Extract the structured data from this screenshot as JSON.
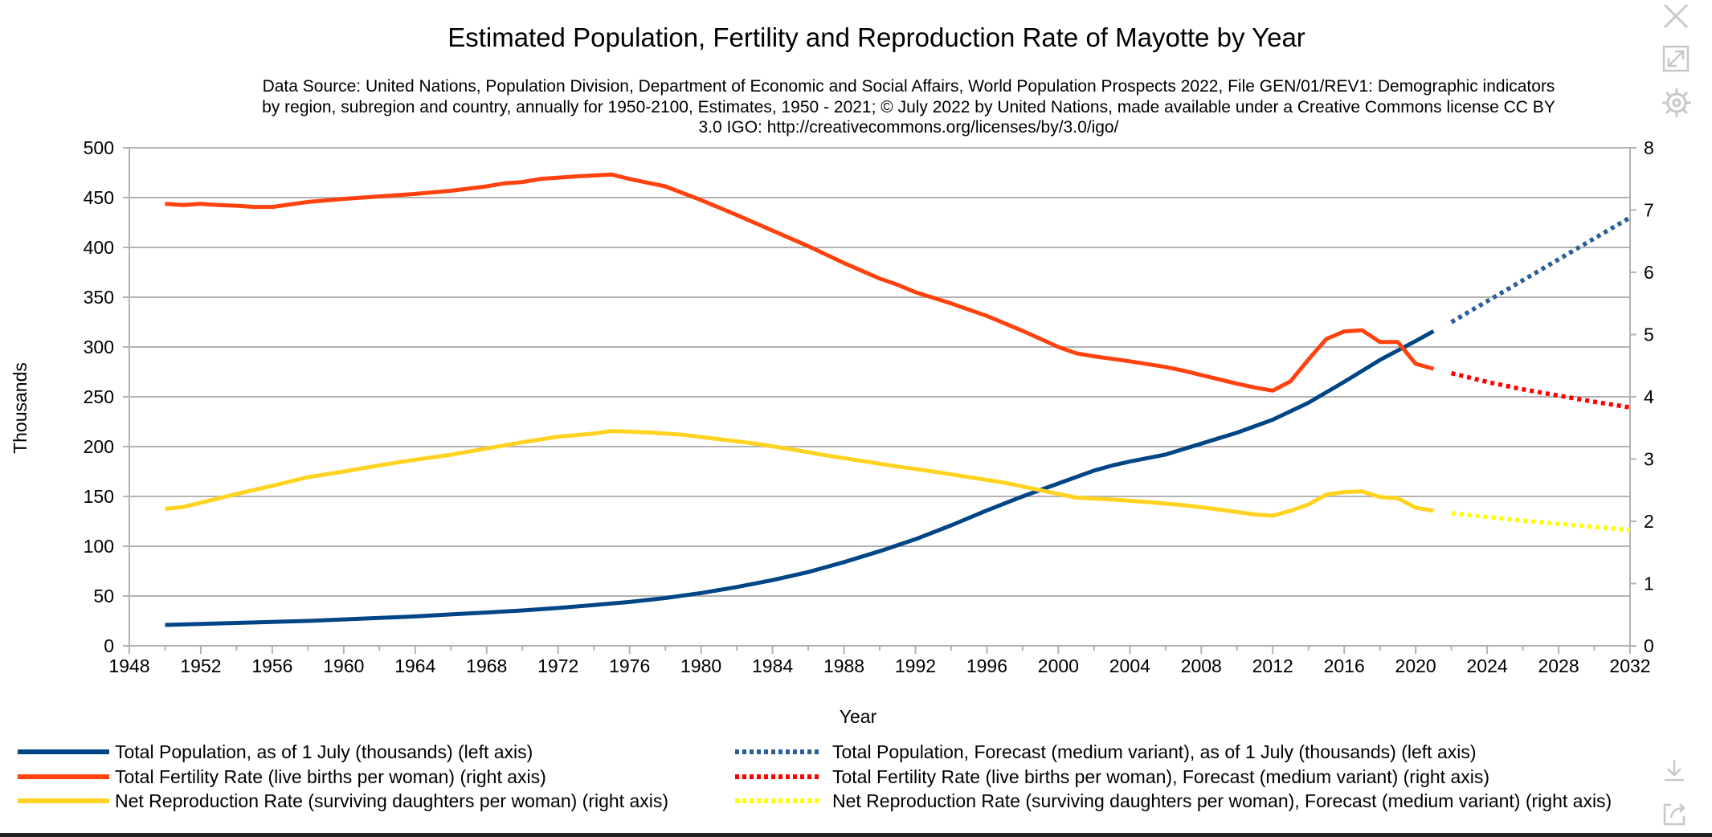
{
  "chart_data": {
    "type": "line",
    "title": "Estimated Population, Fertility and Reproduction Rate of Mayotte by Year",
    "subtitle_lines": [
      "Data Source: United Nations, Population Division, Department of Economic and Social Affairs, World Population Prospects 2022, File GEN/01/REV1: Demographic indicators",
      "by region, subregion and country, annually for 1950-2100, Estimates, 1950 - 2021; © July 2022 by United Nations, made available under a Creative Commons license CC BY",
      "3.0 IGO: http://creativecommons.org/licenses/by/3.0/igo/"
    ],
    "xlabel": "Year",
    "ylabel_left": "Thousands",
    "xlim": [
      1948,
      2032
    ],
    "ylim_left": [
      0,
      500
    ],
    "ylim_right": [
      0,
      8
    ],
    "x_ticks": [
      1948,
      1952,
      1956,
      1960,
      1964,
      1968,
      1972,
      1976,
      1980,
      1984,
      1988,
      1992,
      1996,
      2000,
      2004,
      2008,
      2012,
      2016,
      2020,
      2024,
      2028,
      2032
    ],
    "y_left_ticks": [
      0,
      50,
      100,
      150,
      200,
      250,
      300,
      350,
      400,
      450,
      500
    ],
    "y_right_ticks": [
      0,
      1,
      2,
      3,
      4,
      5,
      6,
      7,
      8
    ],
    "grid": true,
    "legend_position": "bottom",
    "series": [
      {
        "name": "Total Population, as of 1 July (thousands) (left axis)",
        "axis": "left",
        "style": "solid",
        "color": "#004586",
        "x": [
          1950,
          1952,
          1954,
          1956,
          1958,
          1960,
          1962,
          1964,
          1966,
          1968,
          1970,
          1972,
          1974,
          1976,
          1978,
          1980,
          1982,
          1984,
          1986,
          1988,
          1990,
          1992,
          1994,
          1996,
          1998,
          2000,
          2002,
          2003,
          2004,
          2006,
          2008,
          2010,
          2012,
          2014,
          2016,
          2018,
          2020,
          2021
        ],
        "y": [
          21,
          22,
          23,
          24,
          25,
          26.5,
          28,
          29.5,
          31.5,
          33.5,
          35.5,
          38,
          41,
          44,
          48,
          53,
          59,
          66,
          74,
          84,
          95,
          107,
          121,
          136,
          150,
          163,
          176,
          181,
          185,
          192,
          203,
          214,
          227,
          244,
          265,
          287,
          306,
          316
        ]
      },
      {
        "name": "Total Population, Forecast (medium variant), as of 1 July (thousands) (left axis)",
        "axis": "left",
        "style": "dotted",
        "color": "#2a6099",
        "x": [
          2022,
          2024,
          2026,
          2028,
          2030,
          2032
        ],
        "y": [
          325,
          346,
          367,
          388,
          409,
          430
        ]
      },
      {
        "name": "Total Fertility Rate (live births per woman) (right axis)",
        "axis": "right",
        "style": "solid",
        "color": "#ff420e",
        "x": [
          1950,
          1951,
          1952,
          1953,
          1954,
          1955,
          1956,
          1957,
          1958,
          1960,
          1962,
          1964,
          1966,
          1968,
          1969,
          1970,
          1971,
          1973,
          1975,
          1976,
          1978,
          1980,
          1982,
          1984,
          1986,
          1988,
          1990,
          1991,
          1992,
          1994,
          1996,
          1998,
          1999,
          2000,
          2001,
          2002,
          2004,
          2006,
          2007,
          2008,
          2010,
          2011,
          2012,
          2013,
          2014,
          2015,
          2016,
          2017,
          2018,
          2019,
          2020,
          2021
        ],
        "y": [
          7.1,
          7.08,
          7.1,
          7.08,
          7.07,
          7.05,
          7.05,
          7.09,
          7.13,
          7.18,
          7.22,
          7.26,
          7.31,
          7.38,
          7.43,
          7.45,
          7.5,
          7.54,
          7.57,
          7.5,
          7.38,
          7.16,
          6.92,
          6.67,
          6.42,
          6.15,
          5.9,
          5.8,
          5.68,
          5.5,
          5.3,
          5.06,
          4.93,
          4.8,
          4.7,
          4.65,
          4.57,
          4.48,
          4.42,
          4.35,
          4.21,
          4.15,
          4.1,
          4.25,
          4.6,
          4.93,
          5.05,
          5.07,
          4.88,
          4.88,
          4.53,
          4.45
        ]
      },
      {
        "name": "Total Fertility Rate (live births per woman), Forecast (medium variant) (right axis)",
        "axis": "right",
        "style": "dotted",
        "color": "#ff0000",
        "x": [
          2022,
          2024,
          2026,
          2028,
          2030,
          2032
        ],
        "y": [
          4.38,
          4.24,
          4.12,
          4.02,
          3.92,
          3.83
        ]
      },
      {
        "name": "Net Reproduction Rate (surviving daughters per woman) (right axis)",
        "axis": "right",
        "style": "solid",
        "color": "#ffd320",
        "x": [
          1950,
          1951,
          1952,
          1954,
          1956,
          1958,
          1960,
          1962,
          1964,
          1966,
          1968,
          1970,
          1972,
          1974,
          1975,
          1977,
          1979,
          1981,
          1983,
          1985,
          1987,
          1989,
          1991,
          1993,
          1995,
          1997,
          1999,
          2000,
          2001,
          2003,
          2005,
          2007,
          2009,
          2011,
          2012,
          2013,
          2014,
          2015,
          2016,
          2017,
          2018,
          2019,
          2020,
          2021
        ],
        "y": [
          2.2,
          2.23,
          2.3,
          2.44,
          2.57,
          2.71,
          2.8,
          2.9,
          2.99,
          3.07,
          3.17,
          3.27,
          3.36,
          3.41,
          3.45,
          3.43,
          3.39,
          3.32,
          3.25,
          3.16,
          3.06,
          2.97,
          2.88,
          2.8,
          2.71,
          2.62,
          2.5,
          2.44,
          2.38,
          2.35,
          2.31,
          2.26,
          2.19,
          2.11,
          2.09,
          2.17,
          2.27,
          2.43,
          2.47,
          2.48,
          2.39,
          2.37,
          2.22,
          2.17
        ]
      },
      {
        "name": "Net Reproduction Rate (surviving daughters per woman), Forecast (medium variant) (right axis)",
        "axis": "right",
        "style": "dotted",
        "color": "#ffff00",
        "x": [
          2022,
          2024,
          2026,
          2028,
          2030,
          2032
        ],
        "y": [
          2.13,
          2.07,
          2.01,
          1.96,
          1.91,
          1.86
        ]
      }
    ]
  },
  "toolbar": {
    "icons": [
      "close-icon",
      "expand-icon",
      "gear-icon",
      "download-icon",
      "share-icon"
    ]
  }
}
